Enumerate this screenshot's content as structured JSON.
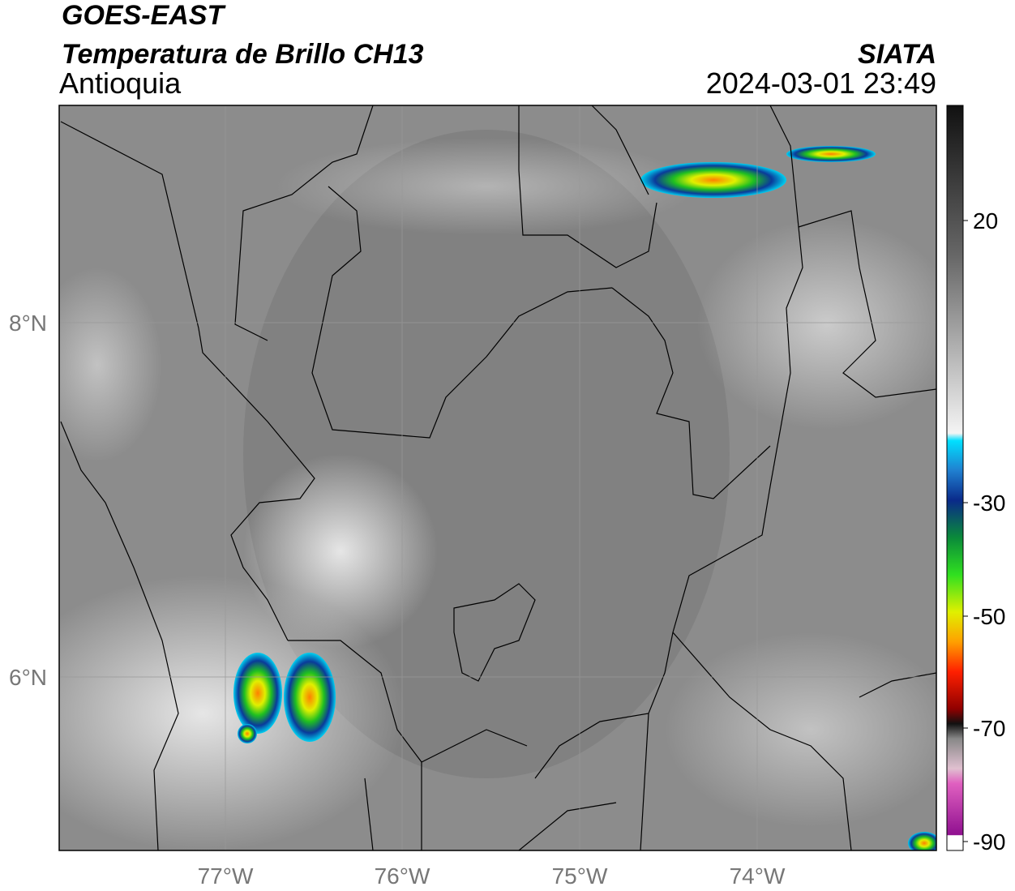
{
  "header": {
    "satellite": "GOES-EAST",
    "product": "Temperatura de Brillo CH13",
    "region": "Antioquia",
    "organization": "SIATA",
    "datetime": "2024-03-01 23:49"
  },
  "map": {
    "latitude_labels": [
      "8°N",
      "6°N"
    ],
    "longitude_labels": [
      "77°W",
      "76°W",
      "75°W",
      "74°W"
    ]
  },
  "colorbar": {
    "tick_labels": [
      20,
      -30,
      -50,
      -70,
      -90
    ]
  }
}
